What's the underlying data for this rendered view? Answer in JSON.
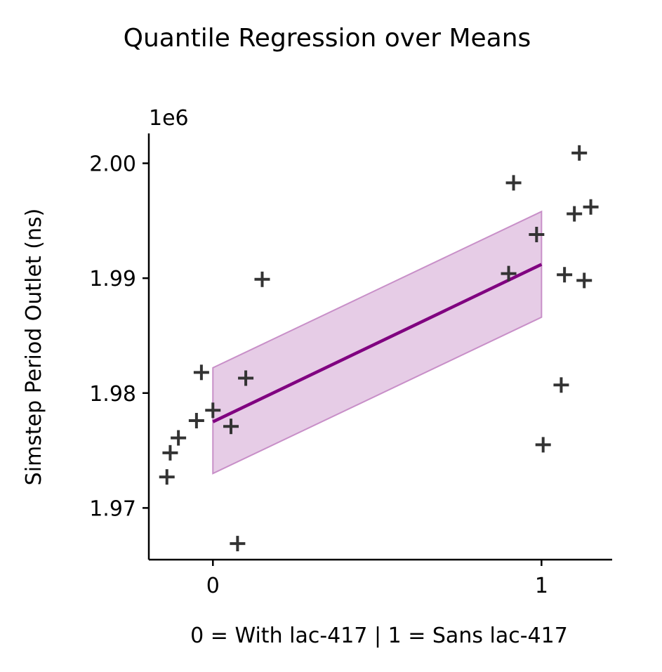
{
  "chart_data": {
    "type": "scatter",
    "title": "Quantile Regression over Means",
    "xlabel": "0 = With lac-417 | 1 = Sans lac-417",
    "ylabel": "Simstep Period Outlet (ns)",
    "y_offset_label": "1e6",
    "xlim": [
      -0.195,
      1.215
    ],
    "ylim": [
      1965500,
      2002600
    ],
    "x_ticks": [
      0,
      1
    ],
    "x_tick_labels": [
      "0",
      "1"
    ],
    "y_ticks": [
      1970000,
      1980000,
      1990000,
      2000000
    ],
    "y_tick_labels": [
      "1.97",
      "1.98",
      "1.99",
      "2.00"
    ],
    "grid": false,
    "points": [
      {
        "x": -0.14,
        "y": 1972700
      },
      {
        "x": -0.13,
        "y": 1974800
      },
      {
        "x": -0.105,
        "y": 1976100
      },
      {
        "x": -0.05,
        "y": 1977600
      },
      {
        "x": -0.035,
        "y": 1981800
      },
      {
        "x": 0.0,
        "y": 1978500
      },
      {
        "x": 0.055,
        "y": 1977100
      },
      {
        "x": 0.075,
        "y": 1966900
      },
      {
        "x": 0.1,
        "y": 1981300
      },
      {
        "x": 0.15,
        "y": 1989900
      },
      {
        "x": 0.9,
        "y": 1990400
      },
      {
        "x": 0.915,
        "y": 1998300
      },
      {
        "x": 0.985,
        "y": 1993800
      },
      {
        "x": 1.005,
        "y": 1975500
      },
      {
        "x": 1.06,
        "y": 1980700
      },
      {
        "x": 1.07,
        "y": 1990300
      },
      {
        "x": 1.1,
        "y": 1995600
      },
      {
        "x": 1.115,
        "y": 2000900
      },
      {
        "x": 1.13,
        "y": 1989800
      },
      {
        "x": 1.15,
        "y": 1996200
      }
    ],
    "regression_line": {
      "x": [
        0,
        1
      ],
      "y": [
        1977500,
        1991200
      ]
    },
    "confidence_band": {
      "x": [
        0,
        1
      ],
      "lower": [
        1973000,
        1986600
      ],
      "upper": [
        1982200,
        1995800
      ]
    },
    "colors": {
      "points": "#333333",
      "line": "#800080",
      "band": "#c88fc8",
      "axis": "#000000"
    }
  }
}
